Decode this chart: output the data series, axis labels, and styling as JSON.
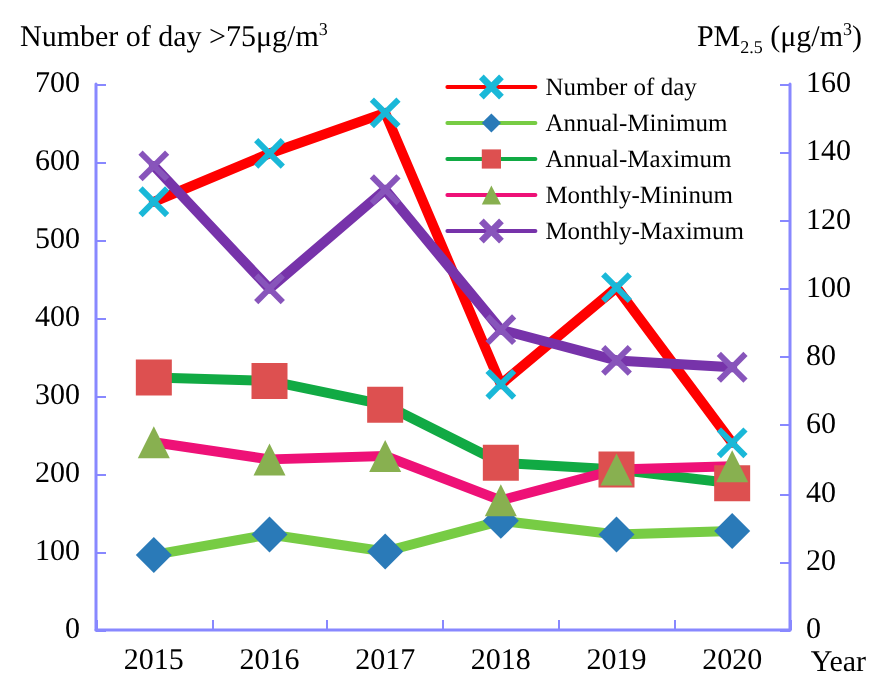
{
  "chart_data": {
    "type": "line",
    "ylabel": "Number of day >75μg/m$^{3}$",
    "y2label": "PM$_{2.5}$ (μg/m$^{3}$)",
    "xlabel": "Year",
    "categories": [
      "2015",
      "2016",
      "2017",
      "2018",
      "2019",
      "2020"
    ],
    "ylim": [
      0,
      700
    ],
    "yticks": [
      0,
      100,
      200,
      300,
      400,
      500,
      600,
      700
    ],
    "y2lim": [
      0,
      160
    ],
    "y2ticks": [
      0,
      20,
      40,
      60,
      80,
      100,
      120,
      140,
      160
    ],
    "grid": false,
    "legend": "top right",
    "line_style": "solid",
    "series": [
      {
        "name": "Number of day",
        "color": "#ff0000",
        "marker": "cross",
        "colors": [
          "#1ab8d8",
          "#1ab8d8",
          "#1ab8d8",
          "#1ab8d8",
          "#1ab8d8",
          "#1ab8d8"
        ],
        "values": [
          549,
          611,
          663,
          315,
          439,
          240
        ]
      },
      {
        "name": "Annual-Minimum",
        "color": "#77cc44",
        "marker": "diamond",
        "colors": [
          "#2a7ab8",
          "#2a7ab8",
          "#2a7ab8",
          "#2a7ab8",
          "#2a7ab8",
          "#2a7ab8"
        ],
        "axis": "y2",
        "values": [
          22,
          28,
          23,
          32,
          28,
          29
        ]
      },
      {
        "name": "Annual-Maximum",
        "color": "#11aa44",
        "marker": "square",
        "colors": [
          "#dd5050",
          "#dd5050",
          "#dd5050",
          "#dd5050",
          "#dd5050",
          "#dd5050"
        ],
        "axis": "y2",
        "values": [
          74,
          73,
          66,
          49,
          47,
          43
        ]
      },
      {
        "name": "Monthly-Mininum",
        "color": "#ee1177",
        "marker": "triangle",
        "colors": [
          "#88b050",
          "#88b050",
          "#88b050",
          "#88b050",
          "#88b050",
          "#88b050"
        ],
        "axis": "y2",
        "values": [
          55,
          50,
          51,
          38,
          47,
          48
        ]
      },
      {
        "name": "Monthly-Maximum",
        "color": "#7733aa",
        "marker": "cross",
        "colors": [
          "#8855bb",
          "#8855bb",
          "#8855bb",
          "#8855bb",
          "#8855bb",
          "#8855bb"
        ],
        "axis": "y2",
        "values": [
          136,
          100,
          129,
          88,
          79,
          77
        ]
      }
    ]
  }
}
